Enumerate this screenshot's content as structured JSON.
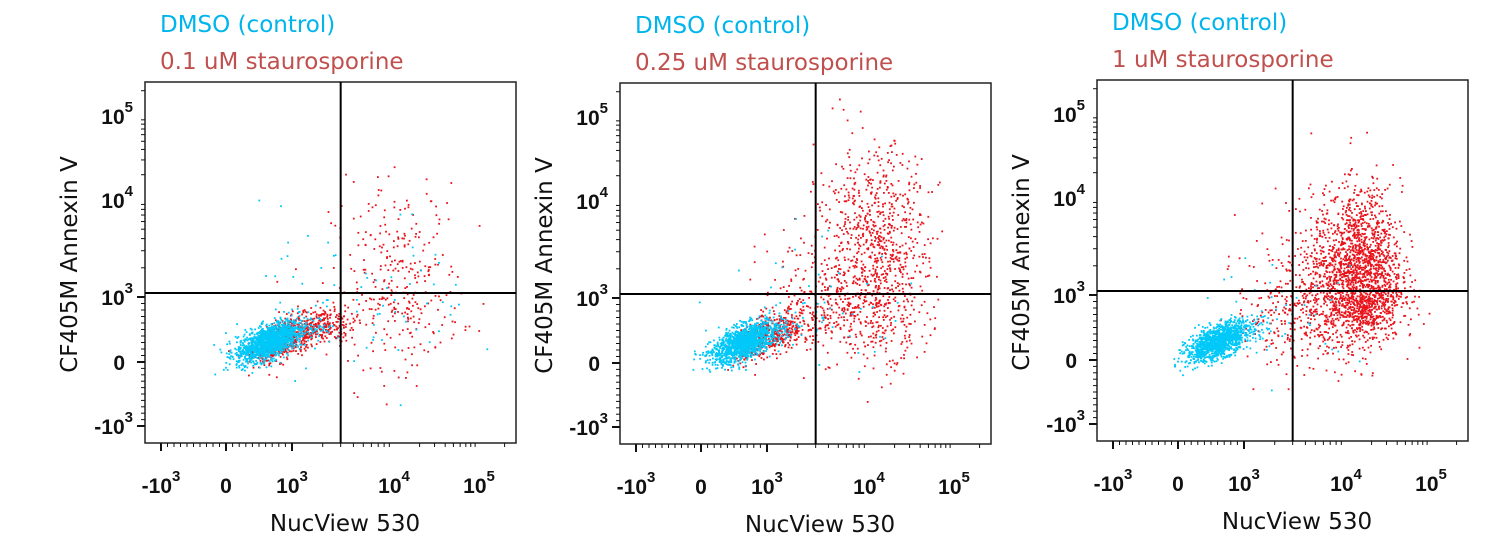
{
  "chart_data": [
    {
      "type": "scatter",
      "legend": [
        {
          "label": "DMSO (control)",
          "color": "#00b4ec"
        },
        {
          "label": "0.1 uM staurosporine",
          "color": "#c0504d"
        }
      ],
      "xlabel": "NucView 530",
      "ylabel": "CF405M Annexin V",
      "x_scale": "biexponential",
      "y_scale": "biexponential",
      "xlim": [
        -1500,
        250000
      ],
      "ylim": [
        -1500,
        250000
      ],
      "quadrant_gate": {
        "x": 3000,
        "y": 1100
      },
      "series": [
        {
          "label_ref": 1,
          "point_color": "#e8141c",
          "clusters": [
            {
              "x": 900,
              "y": 380,
              "sx": 0.25,
              "sy": 0.17,
              "rho": 0.6,
              "n": 700
            },
            {
              "x": 2000,
              "y": 600,
              "sx": 0.15,
              "sy": 0.14,
              "n": 150
            },
            {
              "x": 12000,
              "y": 1200,
              "sx": 0.35,
              "sy": 0.55,
              "n": 320
            }
          ]
        },
        {
          "label_ref": 0,
          "point_color": "#00c8f8",
          "clusters": [
            {
              "x": 650,
              "y": 330,
              "sx": 0.25,
              "sy": 0.16,
              "rho": 0.6,
              "n": 1500
            },
            {
              "x": 5000,
              "y": 900,
              "sx": 0.6,
              "sy": 0.5,
              "n": 70
            }
          ]
        }
      ]
    },
    {
      "type": "scatter",
      "legend": [
        {
          "label": "DMSO (control)",
          "color": "#00b4ec"
        },
        {
          "label": "0.25 uM staurosporine",
          "color": "#c0504d"
        }
      ],
      "xlabel": "NucView 530",
      "ylabel": "CF405M Annexin V",
      "x_scale": "biexponential",
      "y_scale": "biexponential",
      "xlim": [
        -1500,
        250000
      ],
      "ylim": [
        -1500,
        250000
      ],
      "quadrant_gate": {
        "x": 3000,
        "y": 1100
      },
      "series": [
        {
          "label_ref": 1,
          "point_color": "#e8141c",
          "clusters": [
            {
              "x": 1000,
              "y": 420,
              "sx": 0.25,
              "sy": 0.17,
              "rho": 0.6,
              "n": 500
            },
            {
              "x": 3000,
              "y": 900,
              "sx": 0.3,
              "sy": 0.4,
              "n": 220
            },
            {
              "x": 12000,
              "y": 2500,
              "sx": 0.3,
              "sy": 0.6,
              "n": 950
            }
          ]
        },
        {
          "label_ref": 0,
          "point_color": "#00c8f8",
          "clusters": [
            {
              "x": 650,
              "y": 330,
              "sx": 0.25,
              "sy": 0.16,
              "rho": 0.6,
              "n": 1400
            },
            {
              "x": 3000,
              "y": 800,
              "sx": 0.5,
              "sy": 0.4,
              "n": 50
            }
          ]
        }
      ]
    },
    {
      "type": "scatter",
      "legend": [
        {
          "label": "DMSO (control)",
          "color": "#00b4ec"
        },
        {
          "label": "1 uM staurosporine",
          "color": "#c0504d"
        }
      ],
      "xlabel": "NucView 530",
      "ylabel": "CF405M Annexin V",
      "x_scale": "biexponential",
      "y_scale": "biexponential",
      "xlim": [
        -1500,
        250000
      ],
      "ylim": [
        -1500,
        250000
      ],
      "quadrant_gate": {
        "x": 3000,
        "y": 1100
      },
      "series": [
        {
          "label_ref": 1,
          "point_color": "#e8141c",
          "clusters": [
            {
              "x": 3000,
              "y": 800,
              "sx": 0.3,
              "sy": 0.45,
              "n": 320
            },
            {
              "x": 14000,
              "y": 1500,
              "sx": 0.25,
              "sy": 0.45,
              "n": 2000
            }
          ]
        },
        {
          "label_ref": 0,
          "point_color": "#00c8f8",
          "clusters": [
            {
              "x": 600,
              "y": 300,
              "sx": 0.24,
              "sy": 0.15,
              "rho": 0.6,
              "n": 1300
            },
            {
              "x": 2500,
              "y": 700,
              "sx": 0.4,
              "sy": 0.35,
              "n": 40
            }
          ]
        }
      ]
    }
  ],
  "x_ticks": [
    {
      "value": -1000,
      "base": "-10",
      "exp": "3"
    },
    {
      "value": 0,
      "base": "0",
      "exp": ""
    },
    {
      "value": 1000,
      "base": "10",
      "exp": "3"
    },
    {
      "value": 10000,
      "base": "10",
      "exp": "4"
    },
    {
      "value": 100000,
      "base": "10",
      "exp": "5"
    }
  ],
  "y_ticks": [
    {
      "value": -1000,
      "base": "-10",
      "exp": "3"
    },
    {
      "value": 0,
      "base": "0",
      "exp": ""
    },
    {
      "value": 1000,
      "base": "10",
      "exp": "3"
    },
    {
      "value": 10000,
      "base": "10",
      "exp": "4"
    },
    {
      "value": 100000,
      "base": "10",
      "exp": "5"
    }
  ]
}
